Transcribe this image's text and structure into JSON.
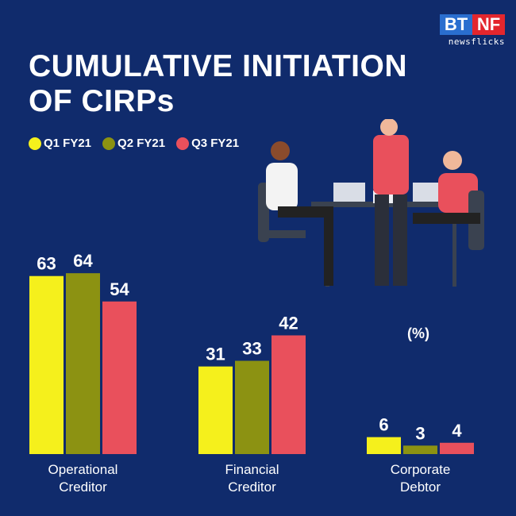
{
  "logo": {
    "top_left": "BT",
    "top_right": "NF",
    "sub": "newsflicks"
  },
  "title_lines": [
    "CUMULATIVE INITIATION",
    "OF CIRPs"
  ],
  "chart_data": {
    "type": "bar",
    "title": "CUMULATIVE INITIATION OF CIRPs",
    "unit_label": "(%)",
    "categories": [
      [
        "Operational",
        "Creditor"
      ],
      [
        "Financial",
        "Creditor"
      ],
      [
        "Corporate",
        "Debtor"
      ]
    ],
    "series": [
      {
        "name": "Q1 FY21",
        "color": "#f5f01c",
        "values": [
          63,
          31,
          6
        ]
      },
      {
        "name": "Q2 FY21",
        "color": "#8c9212",
        "values": [
          64,
          33,
          3
        ]
      },
      {
        "name": "Q3 FY21",
        "color": "#e9505c",
        "values": [
          54,
          42,
          4
        ]
      }
    ],
    "grid": false,
    "legend": "top-left",
    "data_labels": true
  }
}
